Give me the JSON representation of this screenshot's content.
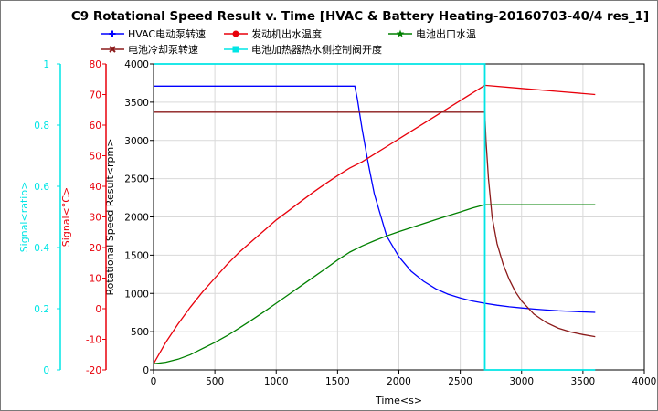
{
  "chart_data": {
    "type": "line",
    "title": "C9 Rotational Speed Result v. Time [HVAC & Battery Heating-20160703-40/4 res_1]",
    "xlabel": "Time<s>",
    "xlim": [
      0,
      4000
    ],
    "xticks": [
      0,
      500,
      1000,
      1500,
      2000,
      2500,
      3000,
      3500,
      4000
    ],
    "grid": true,
    "axes": {
      "primary": {
        "label": "Rotational Speed Result<rpm>",
        "ylim": [
          0,
          4000
        ],
        "ticks": [
          0,
          500,
          1000,
          1500,
          2000,
          2500,
          3000,
          3500,
          4000
        ],
        "color": "#000000"
      },
      "temperature": {
        "label": "Signal<°C>",
        "ylim": [
          -20,
          80
        ],
        "ticks": [
          -20,
          -10,
          0,
          10,
          20,
          30,
          40,
          50,
          60,
          70,
          80
        ],
        "color": "#e8000b"
      },
      "ratio": {
        "label": "Signal<ratio>",
        "ylim": [
          0,
          1
        ],
        "ticks": [
          0,
          0.2,
          0.4,
          0.6,
          0.8,
          1
        ],
        "color": "#00e5e5"
      }
    },
    "legend": {
      "placement": "top",
      "entries": [
        {
          "name": "HVAC电动泵转速",
          "color": "#0000ff",
          "marker": "plus"
        },
        {
          "name": "发动机出水温度",
          "color": "#e8000b",
          "marker": "circle"
        },
        {
          "name": "电池出口水温",
          "color": "#008000",
          "marker": "star"
        },
        {
          "name": "电池冷却泵转速",
          "color": "#8b1a1a",
          "marker": "cross"
        },
        {
          "name": "电池加热器热水侧控制阀开度",
          "color": "#00e5e5",
          "marker": "square"
        }
      ]
    },
    "series": [
      {
        "name": "HVAC电动泵转速",
        "axis": "primary",
        "color": "#0000ff",
        "x": [
          0,
          1640,
          1660,
          1700,
          1750,
          1800,
          1900,
          2000,
          2100,
          2200,
          2300,
          2400,
          2500,
          2600,
          2700,
          2800,
          2900,
          3000,
          3100,
          3200,
          3300,
          3400,
          3500,
          3600
        ],
        "y": [
          3710,
          3710,
          3550,
          3150,
          2700,
          2300,
          1750,
          1480,
          1290,
          1160,
          1060,
          990,
          940,
          900,
          870,
          845,
          825,
          810,
          795,
          783,
          773,
          765,
          758,
          752
        ]
      },
      {
        "name": "发动机出水温度",
        "axis": "temperature",
        "color": "#e8000b",
        "x": [
          0,
          100,
          200,
          300,
          400,
          500,
          600,
          700,
          800,
          900,
          1000,
          1100,
          1200,
          1300,
          1400,
          1500,
          1600,
          1700,
          1800,
          1900,
          2000,
          2100,
          2200,
          2300,
          2400,
          2500,
          2600,
          2700,
          3000,
          3300,
          3600
        ],
        "y": [
          -18,
          -11,
          -5,
          0.5,
          5.5,
          10,
          14.5,
          18.5,
          22,
          25.5,
          29,
          32,
          35,
          38,
          40.8,
          43.5,
          46,
          48,
          50.5,
          53,
          55.5,
          58,
          60.5,
          63,
          65.5,
          68,
          70.5,
          73,
          72,
          71,
          70
        ]
      },
      {
        "name": "电池出口水温",
        "axis": "temperature",
        "color": "#008000",
        "x": [
          0,
          100,
          200,
          300,
          400,
          500,
          600,
          700,
          800,
          900,
          1000,
          1100,
          1200,
          1300,
          1400,
          1500,
          1600,
          1700,
          1800,
          1900,
          2000,
          2100,
          2200,
          2300,
          2400,
          2500,
          2600,
          2700,
          3000,
          3300,
          3600
        ],
        "y": [
          -18,
          -17.5,
          -16.5,
          -15,
          -13,
          -11,
          -8.8,
          -6.3,
          -3.7,
          -1,
          1.8,
          4.6,
          7.4,
          10.2,
          13,
          15.9,
          18.5,
          20.5,
          22.2,
          23.8,
          25.2,
          26.5,
          27.8,
          29.1,
          30.4,
          31.6,
          32.9,
          34,
          34,
          34,
          34
        ]
      },
      {
        "name": "电池冷却泵转速",
        "axis": "primary",
        "color": "#8b1a1a",
        "x": [
          0,
          2700,
          2710,
          2730,
          2760,
          2800,
          2850,
          2900,
          2950,
          3000,
          3100,
          3200,
          3300,
          3400,
          3500,
          3600
        ],
        "y": [
          3370,
          3370,
          3000,
          2500,
          2000,
          1650,
          1380,
          1180,
          1020,
          900,
          730,
          620,
          545,
          495,
          462,
          435
        ]
      },
      {
        "name": "电池加热器热水侧控制阀开度",
        "axis": "ratio",
        "color": "#00e5e5",
        "x": [
          0,
          2700,
          2700,
          3600
        ],
        "y": [
          1,
          1,
          0,
          0
        ]
      }
    ]
  }
}
